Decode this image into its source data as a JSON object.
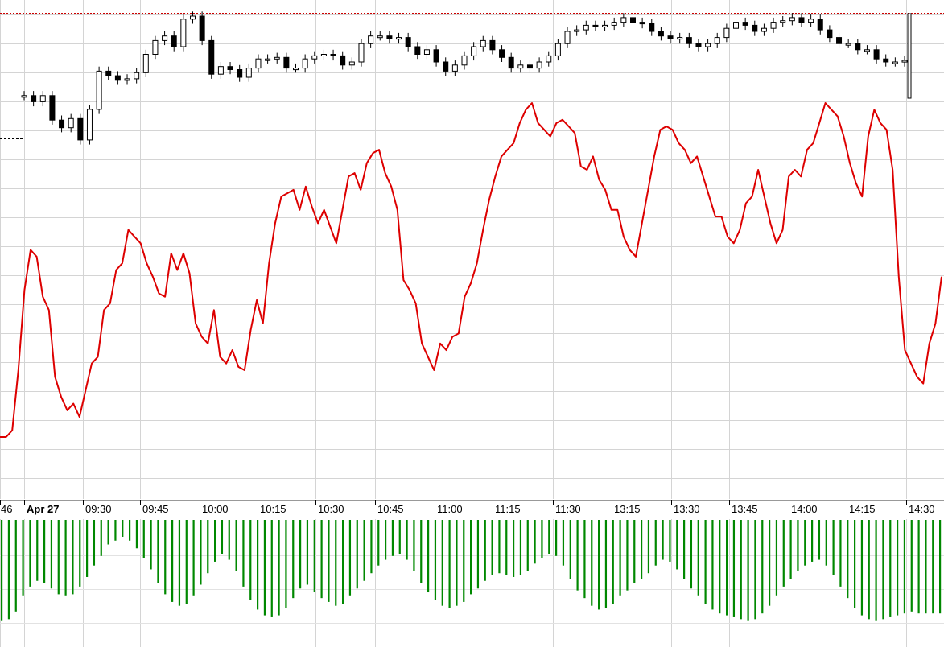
{
  "chart_data": [
    {
      "type": "candlestick",
      "x_tick_labels": [
        "46",
        "Apr 27",
        "09:30",
        "09:45",
        "10:00",
        "10:15",
        "10:30",
        "10:45",
        "11:00",
        "11:15",
        "11:30",
        "13:15",
        "13:30",
        "13:45",
        "14:00",
        "14:15",
        "14:30"
      ],
      "reference_line": "dotted red at the high",
      "grid": true,
      "price_shape": [
        48,
        44,
        48,
        32,
        27,
        33,
        19,
        39,
        64,
        61,
        58,
        59,
        63,
        75,
        84,
        87,
        80,
        98,
        100,
        84,
        62,
        67,
        65,
        60,
        66,
        72,
        72,
        73,
        66,
        66,
        72,
        74,
        75,
        74,
        68,
        70,
        82,
        87,
        87,
        85,
        86,
        80,
        75,
        78,
        70,
        64,
        68,
        74,
        80,
        84,
        78,
        73,
        66,
        68,
        66,
        70,
        74,
        82,
        90,
        91,
        94,
        93,
        94,
        96,
        99,
        96,
        95,
        90,
        87,
        85,
        86,
        82,
        80,
        82,
        86,
        92,
        96,
        94,
        90,
        92,
        96,
        97,
        99,
        96,
        98,
        91,
        86,
        82,
        82,
        78,
        78,
        72,
        70,
        70,
        71
      ]
    },
    {
      "type": "line",
      "series_color": "#dd0000",
      "grid": true,
      "values": [
        0,
        0,
        2,
        20,
        44,
        56,
        54,
        42,
        38,
        18,
        12,
        8,
        10,
        6,
        14,
        22,
        24,
        38,
        40,
        50,
        52,
        62,
        60,
        58,
        52,
        48,
        43,
        42,
        55,
        50,
        55,
        49,
        34,
        30,
        28,
        38,
        24,
        22,
        26,
        21,
        20,
        32,
        41,
        34,
        52,
        64,
        72,
        73,
        74,
        68,
        75,
        69,
        64,
        68,
        63,
        58,
        68,
        78,
        79,
        74,
        82,
        85,
        86,
        79,
        75,
        68,
        47,
        44,
        40,
        28,
        24,
        20,
        28,
        26,
        30,
        31,
        42,
        46,
        52,
        62,
        71,
        78,
        84,
        86,
        88,
        94,
        98,
        100,
        94,
        92,
        90,
        94,
        95,
        93,
        91,
        81,
        80,
        84,
        77,
        74,
        68,
        68,
        60,
        56,
        54,
        64,
        74,
        84,
        92,
        93,
        92,
        88,
        86,
        82,
        84,
        78,
        72,
        66,
        66,
        60,
        58,
        62,
        70,
        72,
        80,
        72,
        64,
        58,
        62,
        78,
        80,
        78,
        86,
        88,
        94,
        100,
        98,
        96,
        90,
        82,
        76,
        72,
        90,
        98,
        94,
        92,
        80,
        48,
        26,
        22,
        18,
        16,
        28,
        34,
        48
      ]
    },
    {
      "type": "bar",
      "series_color": "#008800",
      "grid": true,
      "values": [
        88,
        86,
        78,
        62,
        52,
        46,
        48,
        54,
        60,
        62,
        60,
        52,
        42,
        30,
        20,
        8,
        4,
        0,
        4,
        12,
        22,
        34,
        48,
        60,
        68,
        72,
        70,
        62,
        50,
        38,
        26,
        18,
        24,
        36,
        52,
        66,
        76,
        82,
        84,
        82,
        74,
        64,
        54,
        50,
        58,
        64,
        68,
        72,
        70,
        62,
        54,
        46,
        38,
        30,
        24,
        20,
        18,
        24,
        36,
        48,
        58,
        66,
        72,
        74,
        72,
        68,
        60,
        54,
        46,
        40,
        38,
        40,
        42,
        40,
        36,
        28,
        22,
        18,
        20,
        30,
        44,
        56,
        64,
        72,
        76,
        74,
        70,
        62,
        56,
        48,
        44,
        38,
        30,
        24,
        26,
        34,
        44,
        54,
        62,
        70,
        76,
        80,
        82,
        84,
        86,
        88,
        86,
        80,
        72,
        62,
        52,
        44,
        36,
        30,
        26,
        24,
        30,
        40,
        52,
        64,
        74,
        82,
        86,
        88,
        86,
        84,
        82,
        80,
        78,
        80,
        80,
        80,
        80
      ]
    }
  ]
}
